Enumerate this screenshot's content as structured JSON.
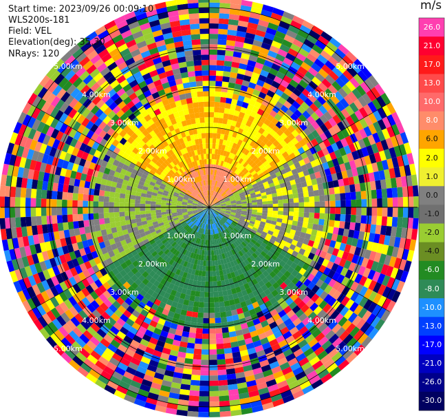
{
  "info": {
    "start_time": "Start time: 2023/09/26 00:09:10",
    "instrument": "WLS200s-181",
    "field": "Field: VEL",
    "elevation": "Elevation(deg): 35.30",
    "nrays": "NRays: 120"
  },
  "rings": {
    "labels": [
      "1.00km",
      "2.00km",
      "3.00km",
      "4.00km",
      "5.00km"
    ]
  },
  "colorbar": {
    "title": "m/s",
    "ticks": [
      "26.0",
      "21.0",
      "17.0",
      "13.0",
      "10.0",
      "8.0",
      "6.0",
      "2.0",
      "1.0",
      "0.0",
      "-1.0",
      "-2.0",
      "-4.0",
      "-6.0",
      "-8.0",
      "-10.0",
      "-13.0",
      "-17.0",
      "-21.0",
      "-26.0",
      "-30.0"
    ],
    "colors": [
      "#ff3fb0",
      "#ff0030",
      "#ff1a1a",
      "#ff4a4a",
      "#ff6a6a",
      "#ff8c6a",
      "#ffa500",
      "#ffff00",
      "#f0f030",
      "#808080",
      "#707070",
      "#9acd32",
      "#6b8e23",
      "#228b22",
      "#2e8b57",
      "#1e90ff",
      "#0040ff",
      "#0000ff",
      "#0000c0",
      "#00008b",
      "#000060"
    ]
  }
}
